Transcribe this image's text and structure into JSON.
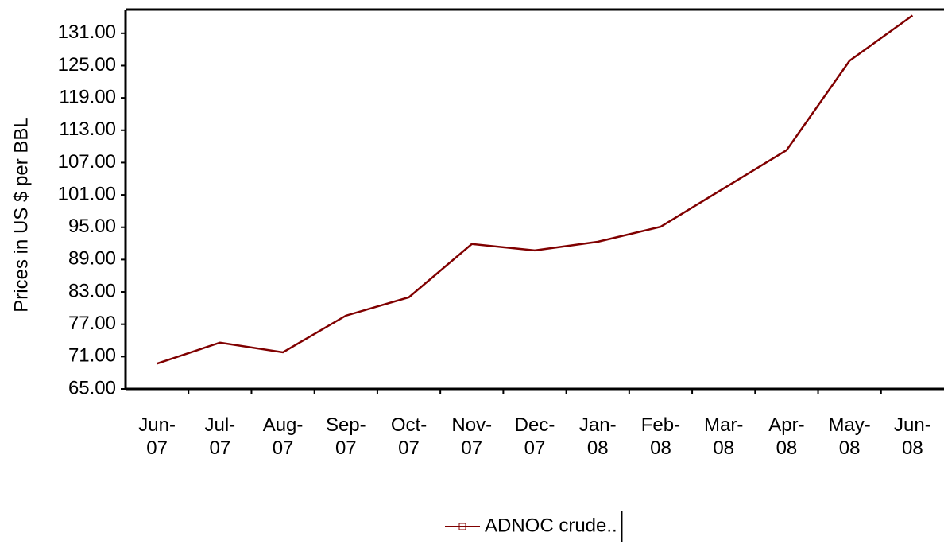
{
  "chart_data": {
    "type": "line",
    "y_label": "Prices in US $ per BBL",
    "categories": [
      "Jun-07",
      "Jul-07",
      "Aug-07",
      "Sep-07",
      "Oct-07",
      "Nov-07",
      "Dec-07",
      "Jan-08",
      "Feb-08",
      "Mar-08",
      "Apr-08",
      "May-08",
      "Jun-08"
    ],
    "series": [
      {
        "name": "ADNOC crude..",
        "color": "#800000",
        "values": [
          69.7,
          73.6,
          71.8,
          78.6,
          82.0,
          91.9,
          90.7,
          92.3,
          95.1,
          102.2,
          109.3,
          125.9,
          134.3
        ]
      }
    ],
    "ylim": [
      65,
      135.4
    ],
    "yticks": [
      {
        "value": 65,
        "label": "65.00"
      },
      {
        "value": 71,
        "label": "71.00"
      },
      {
        "value": 77,
        "label": "77.00"
      },
      {
        "value": 83,
        "label": "83.00"
      },
      {
        "value": 89,
        "label": "89.00"
      },
      {
        "value": 95,
        "label": "95.00"
      },
      {
        "value": 101,
        "label": "101.00"
      },
      {
        "value": 107,
        "label": "107.00"
      },
      {
        "value": 113,
        "label": "113.00"
      },
      {
        "value": 119,
        "label": "119.00"
      },
      {
        "value": 125,
        "label": "125.00"
      },
      {
        "value": 131,
        "label": "131.00"
      }
    ],
    "grid": false,
    "legend": "bottom"
  }
}
